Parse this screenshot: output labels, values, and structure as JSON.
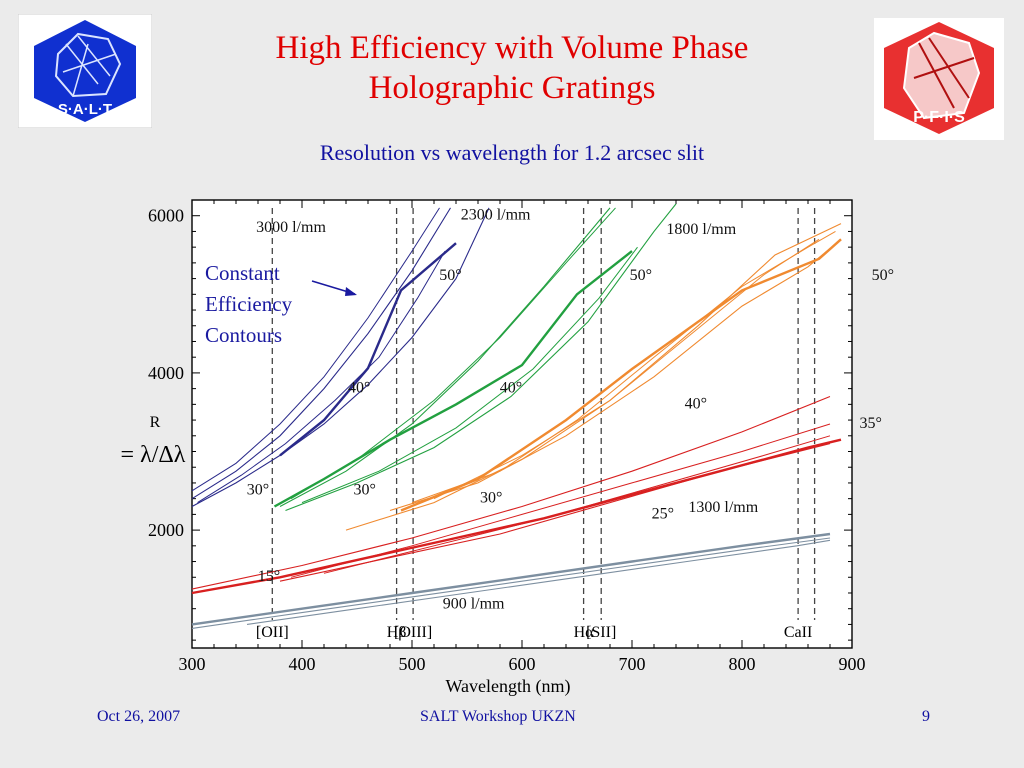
{
  "slide": {
    "title_line1": "High Efficiency with Volume Phase",
    "title_line2": "Holographic Gratings",
    "subtitle": "Resolution vs wavelength for 1.2 arcsec slit",
    "callout_lines": [
      "Constant",
      "Efficiency",
      "Contours"
    ],
    "footer_date": "Oct 26, 2007",
    "footer_event": "SALT Workshop UKZN",
    "page_number": "9",
    "logo_left_text": "S·A·L·T",
    "logo_right_text": "P·F·I·S",
    "colors": {
      "title": "#e00000",
      "subtitle": "#1010a0",
      "g3000": "#2a2a8a",
      "g2300": "#22a040",
      "g1800": "#f08a30",
      "g1300": "#d82020",
      "g900": "#7d8fa0"
    }
  },
  "chart_data": {
    "type": "line",
    "xlabel": "Wavelength (nm)",
    "ylabel_line1": "R",
    "ylabel_line2": "= λ/Δλ",
    "xlim": [
      300,
      900
    ],
    "ylim": [
      500,
      6200
    ],
    "x_ticks": [
      300,
      400,
      500,
      600,
      700,
      800,
      900
    ],
    "y_ticks": [
      2000,
      4000,
      6000
    ],
    "grid": false,
    "spectral_lines": [
      {
        "label": "[OII]",
        "x": 373
      },
      {
        "label": "Hβ",
        "x": 486
      },
      {
        "label": "[OIII]",
        "x": 501
      },
      {
        "label": "Hα",
        "x": 656
      },
      {
        "label": "[SII]",
        "x": 672
      },
      {
        "label": "CaII",
        "x": 851
      },
      {
        "label": "",
        "x": 866
      }
    ],
    "gratings": [
      {
        "name": "3000 l/mm",
        "color_key": "g3000",
        "label_at": [
          390,
          5790
        ],
        "bold": [
          [
            380,
            2950
          ],
          [
            420,
            3400
          ],
          [
            460,
            4060
          ],
          [
            490,
            5050
          ],
          [
            540,
            5650
          ]
        ],
        "envelope": [
          [
            [
              300,
              2400
            ],
            [
              340,
              2750
            ],
            [
              380,
              3200
            ],
            [
              420,
              3800
            ],
            [
              460,
              4500
            ],
            [
              500,
              5300
            ],
            [
              535,
              6100
            ]
          ],
          [
            [
              300,
              2300
            ],
            [
              340,
              2600
            ],
            [
              380,
              2950
            ],
            [
              420,
              3350
            ],
            [
              460,
              3850
            ],
            [
              500,
              4450
            ],
            [
              540,
              5200
            ],
            [
              570,
              6100
            ]
          ]
        ],
        "contour": [
          [
            [
              300,
              2500
            ],
            [
              340,
              2850
            ],
            [
              380,
              3350
            ],
            [
              420,
              3950
            ],
            [
              460,
              4700
            ],
            [
              500,
              5550
            ],
            [
              525,
              6100
            ]
          ],
          [
            [
              305,
              2350
            ],
            [
              345,
              2700
            ],
            [
              385,
              3100
            ],
            [
              430,
              3650
            ],
            [
              470,
              4200
            ],
            [
              505,
              4950
            ],
            [
              530,
              5550
            ]
          ]
        ],
        "angles": [
          {
            "label": "30°",
            "x": 360,
            "y": 2450
          },
          {
            "label": "40°",
            "x": 452,
            "y": 3750
          },
          {
            "label": "50°",
            "x": 535,
            "y": 5180
          }
        ]
      },
      {
        "name": "2300 l/mm",
        "color_key": "g2300",
        "label_at": [
          576,
          5950
        ],
        "bold": [
          [
            375,
            2300
          ],
          [
            420,
            2650
          ],
          [
            480,
            3150
          ],
          [
            540,
            3600
          ],
          [
            600,
            4100
          ],
          [
            650,
            5000
          ],
          [
            700,
            5550
          ]
        ],
        "envelope": [
          [
            [
              380,
              2300
            ],
            [
              440,
              2750
            ],
            [
              500,
              3350
            ],
            [
              560,
              4150
            ],
            [
              620,
              5100
            ],
            [
              680,
              6100
            ]
          ],
          [
            [
              385,
              2250
            ],
            [
              450,
              2600
            ],
            [
              520,
              3050
            ],
            [
              590,
              3700
            ],
            [
              660,
              4650
            ],
            [
              720,
              5800
            ],
            [
              740,
              6150
            ]
          ]
        ],
        "contour": [
          [
            [
              390,
              2400
            ],
            [
              450,
              2900
            ],
            [
              520,
              3650
            ],
            [
              580,
              4450
            ],
            [
              640,
              5400
            ],
            [
              685,
              6100
            ]
          ],
          [
            [
              400,
              2350
            ],
            [
              470,
              2750
            ],
            [
              540,
              3300
            ],
            [
              610,
              4050
            ],
            [
              670,
              4950
            ],
            [
              705,
              5600
            ]
          ]
        ],
        "angles": [
          {
            "label": "30°",
            "x": 457,
            "y": 2450
          },
          {
            "label": "40°",
            "x": 590,
            "y": 3750
          },
          {
            "label": "50°",
            "x": 708,
            "y": 5180
          }
        ]
      },
      {
        "name": "1800 l/mm",
        "color_key": "g1800",
        "label_at": [
          763,
          5770
        ],
        "bold": [
          [
            490,
            2250
          ],
          [
            560,
            2650
          ],
          [
            640,
            3400
          ],
          [
            700,
            4050
          ],
          [
            800,
            5050
          ],
          [
            870,
            5450
          ],
          [
            890,
            5700
          ]
        ],
        "envelope": [
          [
            [
              440,
              2000
            ],
            [
              520,
              2350
            ],
            [
              600,
              2900
            ],
            [
              680,
              3650
            ],
            [
              760,
              4600
            ],
            [
              830,
              5500
            ],
            [
              890,
              5900
            ]
          ],
          [
            [
              480,
              2250
            ],
            [
              560,
              2600
            ],
            [
              640,
              3200
            ],
            [
              720,
              3950
            ],
            [
              800,
              4850
            ],
            [
              860,
              5350
            ],
            [
              890,
              5700
            ]
          ]
        ],
        "contour": [
          [
            [
              500,
              2350
            ],
            [
              580,
              2750
            ],
            [
              650,
              3400
            ],
            [
              720,
              4200
            ],
            [
              800,
              5100
            ],
            [
              860,
              5600
            ],
            [
              885,
              5800
            ]
          ],
          [
            [
              520,
              2400
            ],
            [
              600,
              2950
            ],
            [
              680,
              3650
            ],
            [
              750,
              4450
            ],
            [
              820,
              5250
            ],
            [
              870,
              5700
            ]
          ]
        ],
        "angles": [
          {
            "label": "30°",
            "x": 572,
            "y": 2350
          },
          {
            "label": "40°",
            "x": 758,
            "y": 3550
          },
          {
            "label": "50°",
            "x": 928,
            "y": 5180
          }
        ]
      },
      {
        "name": "1300 l/mm",
        "color_key": "g1300",
        "label_at": [
          783,
          2230
        ],
        "bold": [
          [
            300,
            1200
          ],
          [
            380,
            1400
          ],
          [
            460,
            1650
          ],
          [
            540,
            1900
          ],
          [
            620,
            2150
          ],
          [
            700,
            2450
          ],
          [
            780,
            2750
          ],
          [
            860,
            3050
          ],
          [
            890,
            3150
          ]
        ],
        "envelope": [
          [
            [
              300,
              1250
            ],
            [
              400,
              1550
            ],
            [
              500,
              1900
            ],
            [
              600,
              2300
            ],
            [
              700,
              2750
            ],
            [
              800,
              3250
            ],
            [
              880,
              3700
            ]
          ],
          [
            [
              380,
              1350
            ],
            [
              480,
              1650
            ],
            [
              580,
              1950
            ],
            [
              680,
              2350
            ],
            [
              780,
              2750
            ],
            [
              880,
              3100
            ]
          ]
        ],
        "contour": [
          [
            [
              390,
              1400
            ],
            [
              500,
              1800
            ],
            [
              600,
              2200
            ],
            [
              700,
              2600
            ],
            [
              800,
              3000
            ],
            [
              880,
              3350
            ]
          ],
          [
            [
              420,
              1450
            ],
            [
              520,
              1800
            ],
            [
              620,
              2150
            ],
            [
              720,
              2550
            ],
            [
              820,
              2950
            ],
            [
              880,
              3200
            ]
          ]
        ],
        "angles": [
          {
            "label": "15°",
            "x": 370,
            "y": 1350
          },
          {
            "label": "25°",
            "x": 728,
            "y": 2150
          },
          {
            "label": "35°",
            "x": 917,
            "y": 3300
          }
        ]
      },
      {
        "name": "900 l/mm",
        "color_key": "g900",
        "label_at": [
          556,
          1000
        ],
        "bold": [
          [
            300,
            800
          ],
          [
            400,
            1000
          ],
          [
            500,
            1200
          ],
          [
            600,
            1400
          ],
          [
            700,
            1600
          ],
          [
            800,
            1800
          ],
          [
            880,
            1950
          ]
        ],
        "envelope": [
          [
            [
              300,
              750
            ],
            [
              400,
              950
            ],
            [
              500,
              1150
            ],
            [
              600,
              1350
            ],
            [
              700,
              1550
            ],
            [
              800,
              1750
            ],
            [
              880,
              1900
            ]
          ],
          [
            [
              350,
              800
            ],
            [
              450,
              1000
            ],
            [
              550,
              1200
            ],
            [
              650,
              1400
            ],
            [
              750,
              1600
            ],
            [
              850,
              1800
            ],
            [
              880,
              1870
            ]
          ]
        ],
        "contour": [],
        "angles": []
      }
    ]
  }
}
